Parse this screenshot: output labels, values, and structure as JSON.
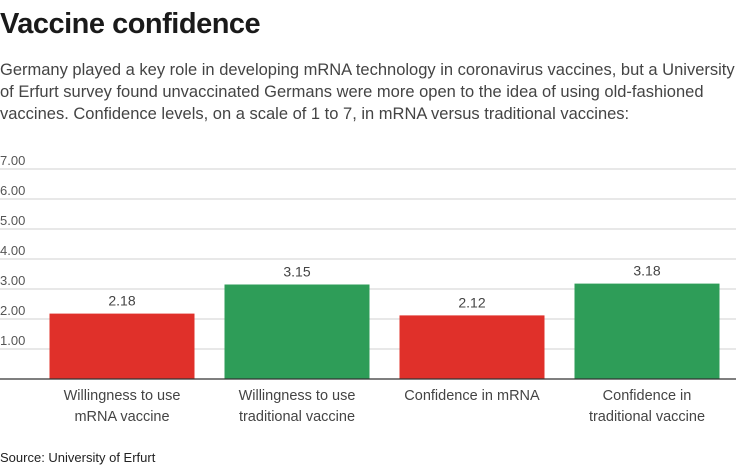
{
  "chart_data": {
    "type": "bar",
    "title": "Vaccine confidence",
    "subtitle": "Germany played a key role in developing mRNA technology in coronavirus vaccines, but a University of Erfurt survey found unvaccinated Germans were more open to the idea of using old-fashioned vaccines. Confidence levels, on a scale of 1 to 7,  in mRNA versus traditional vaccines:",
    "categories": [
      [
        "Willingness to use",
        "mRNA vaccine"
      ],
      [
        "Willingness to use",
        "traditional vaccine"
      ],
      [
        "Confidence in mRNA"
      ],
      [
        "Confidence in",
        "traditional vaccine"
      ]
    ],
    "values": [
      2.18,
      3.15,
      2.12,
      3.18
    ],
    "value_labels": [
      "2.18",
      "3.15",
      "2.12",
      "3.18"
    ],
    "bar_colors": [
      "#e0302a",
      "#2e9d58",
      "#e0302a",
      "#2e9d58"
    ],
    "yticks": [
      1,
      2,
      3,
      4,
      5,
      6,
      7
    ],
    "ytick_labels": [
      "1.00",
      "2.00",
      "3.00",
      "4.00",
      "5.00",
      "6.00",
      "7.00"
    ],
    "ylim": [
      0,
      7
    ],
    "xlabel": "",
    "ylabel": "",
    "grid": true
  },
  "source": "Source: University of Erfurt"
}
